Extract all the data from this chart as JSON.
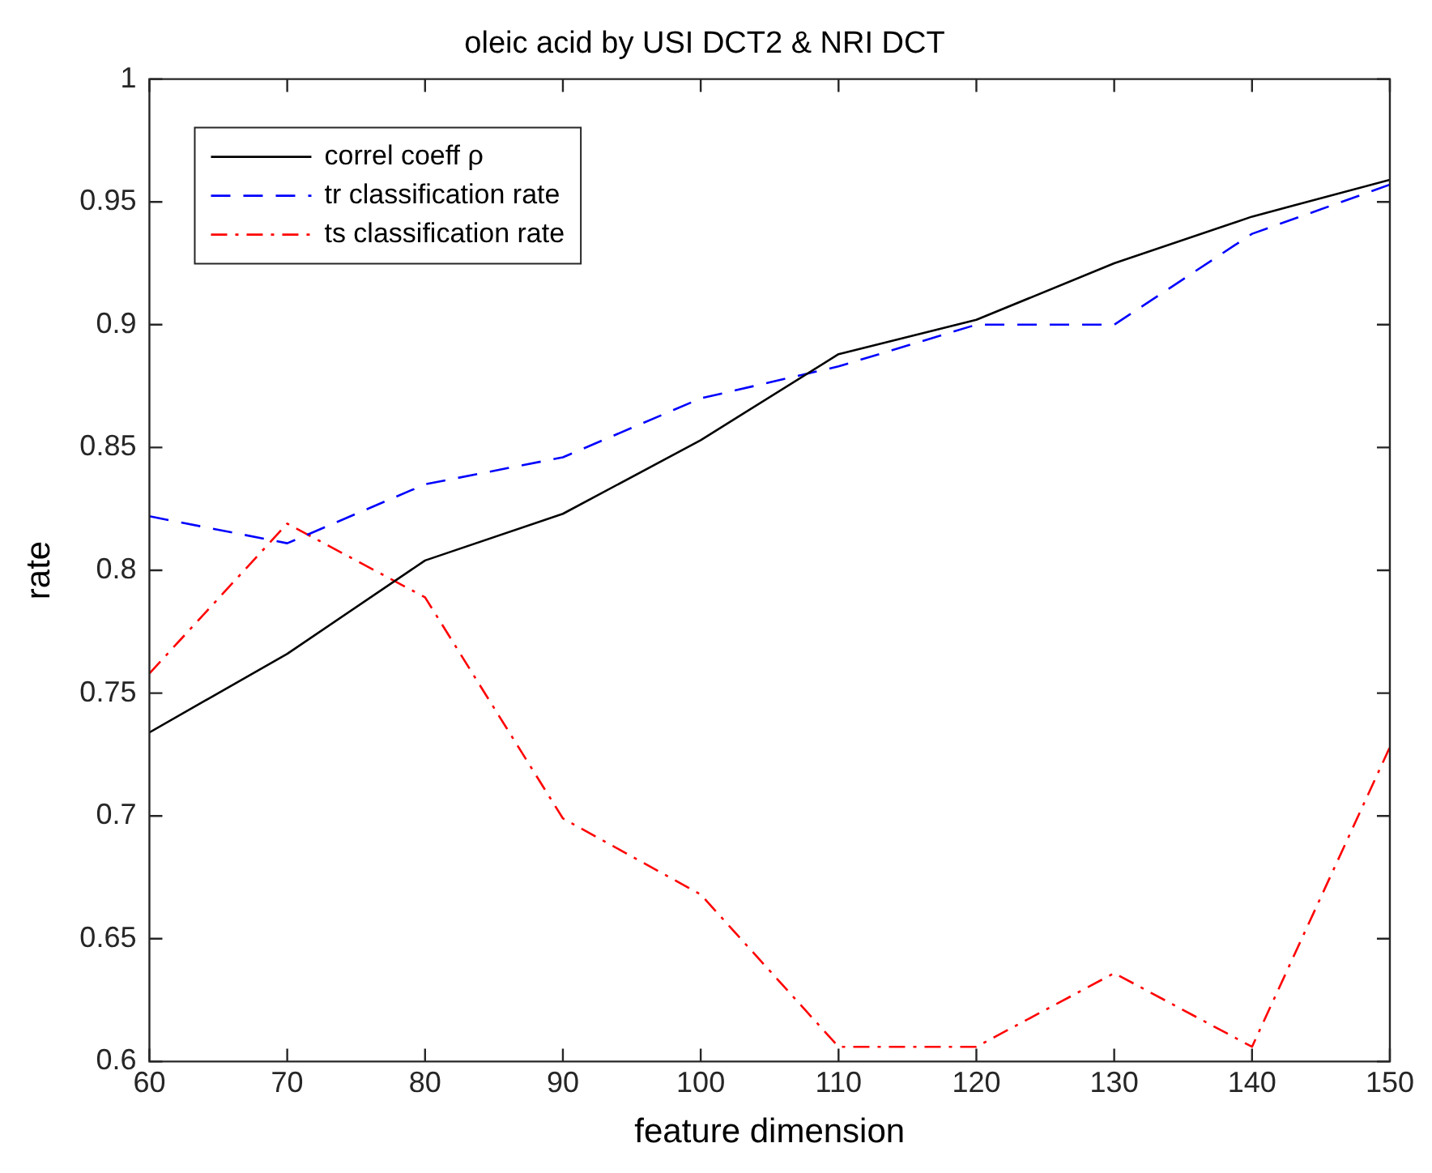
{
  "chart_data": {
    "type": "line",
    "title": "oleic acid by USI DCT2 & NRI DCT",
    "xlabel": "feature dimension",
    "ylabel": "rate",
    "x": [
      60,
      70,
      80,
      90,
      100,
      110,
      120,
      130,
      140,
      150
    ],
    "xlim": [
      60,
      150
    ],
    "xticks": [
      60,
      70,
      80,
      90,
      100,
      110,
      120,
      130,
      140,
      150
    ],
    "ylim": [
      0.6,
      1
    ],
    "yticks": [
      0.6,
      0.65,
      0.7,
      0.75,
      0.8,
      0.85,
      0.9,
      0.95,
      1
    ],
    "grid": false,
    "legend": "top left",
    "marker": "none",
    "series": [
      {
        "name": "correl coeff ρ",
        "color": "#000000",
        "line_style": "solid",
        "values": [
          0.734,
          0.766,
          0.804,
          0.823,
          0.853,
          0.888,
          0.902,
          0.925,
          0.944,
          0.959
        ]
      },
      {
        "name": "tr classification rate",
        "color": "#0000ff",
        "line_style": "dashed",
        "values": [
          0.822,
          0.811,
          0.835,
          0.846,
          0.87,
          0.883,
          0.9,
          0.9,
          0.937,
          0.957
        ]
      },
      {
        "name": "ts classification rate",
        "color": "#ff0000",
        "line_style": "dashdot",
        "values": [
          0.758,
          0.819,
          0.789,
          0.699,
          0.668,
          0.606,
          0.606,
          0.636,
          0.606,
          0.728
        ]
      }
    ]
  }
}
